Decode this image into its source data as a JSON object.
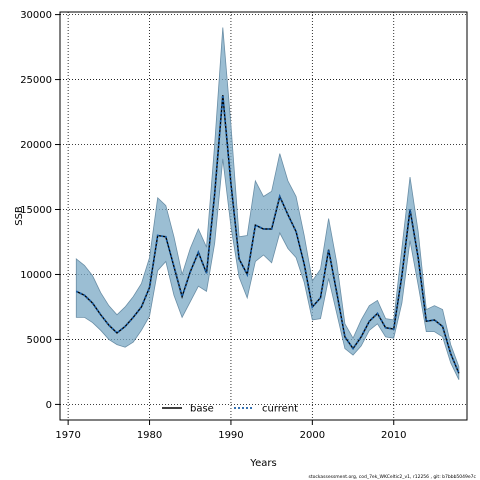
{
  "chart_data": {
    "type": "area",
    "xlabel": "Years",
    "ylabel": "SSB",
    "xlim": [
      1969,
      2019
    ],
    "ylim": [
      -1200,
      30200
    ],
    "xticks": [
      1970,
      1980,
      1990,
      2000,
      2010
    ],
    "yticks": [
      0,
      5000,
      10000,
      15000,
      20000,
      25000,
      30000
    ],
    "grid": true,
    "legend_position": "bottom-center",
    "band_color": "#7aa8c4",
    "band_edge_color": "#6a8ea6",
    "x": [
      1971,
      1972,
      1973,
      1974,
      1975,
      1976,
      1977,
      1978,
      1979,
      1980,
      1981,
      1982,
      1983,
      1984,
      1985,
      1986,
      1987,
      1988,
      1989,
      1990,
      1991,
      1992,
      1993,
      1994,
      1995,
      1996,
      1997,
      1998,
      1999,
      2000,
      2001,
      2002,
      2003,
      2004,
      2005,
      2006,
      2007,
      2008,
      2009,
      2010,
      2011,
      2012,
      2013,
      2014,
      2015,
      2016,
      2017,
      2018
    ],
    "series": [
      {
        "name": "base",
        "style": "solid",
        "color": "#000000",
        "values": [
          8700,
          8400,
          7800,
          6900,
          6100,
          5500,
          6000,
          6700,
          7500,
          9000,
          13000,
          12900,
          10600,
          8300,
          10200,
          11700,
          10100,
          16200,
          23800,
          17000,
          11200,
          10000,
          13800,
          13500,
          13500,
          16000,
          14600,
          13300,
          10800,
          7500,
          8200,
          11900,
          8600,
          5200,
          4300,
          5200,
          6400,
          7000,
          5900,
          5800,
          9900,
          15000,
          11300,
          6400,
          6500,
          6000,
          3900,
          2400
        ]
      },
      {
        "name": "current",
        "style": "dotted",
        "color": "#1a5fa8",
        "values": [
          8700,
          8400,
          7800,
          6900,
          6100,
          5500,
          6000,
          6700,
          7500,
          9000,
          13000,
          12900,
          10600,
          8300,
          10200,
          11700,
          10100,
          16200,
          23800,
          17000,
          11200,
          10000,
          13800,
          13500,
          13500,
          16000,
          14600,
          13300,
          10800,
          7500,
          8200,
          11900,
          8600,
          5200,
          4300,
          5200,
          6400,
          7000,
          5900,
          5800,
          9900,
          15000,
          11300,
          6400,
          6500,
          6000,
          3900,
          2400
        ]
      }
    ],
    "band_upper": [
      11200,
      10700,
      9900,
      8600,
      7600,
      6900,
      7500,
      8300,
      9300,
      11300,
      15900,
      15300,
      12900,
      10000,
      12000,
      13500,
      12100,
      20000,
      29000,
      21500,
      12900,
      13000,
      17200,
      16000,
      16400,
      19300,
      17200,
      16000,
      13000,
      9500,
      10400,
      14300,
      10900,
      6200,
      5100,
      6500,
      7600,
      8000,
      6600,
      6500,
      12000,
      17500,
      13300,
      7300,
      7600,
      7300,
      4600,
      2900
    ],
    "band_lower": [
      6700,
      6700,
      6300,
      5700,
      5000,
      4600,
      4400,
      4800,
      5700,
      6800,
      10300,
      11000,
      8400,
      6700,
      7900,
      9100,
      8700,
      12400,
      18900,
      13700,
      9800,
      8200,
      11000,
      11500,
      10900,
      13200,
      12000,
      11300,
      9400,
      6500,
      6600,
      9700,
      7000,
      4300,
      3800,
      4500,
      5700,
      6200,
      5200,
      5100,
      7800,
      12600,
      9200,
      5600,
      5600,
      5200,
      3200,
      1900
    ],
    "footer": "stockassessment.org, cod_7ek_WKCeltic2_v1, r12256 , git: b7bbb5049e7c"
  }
}
